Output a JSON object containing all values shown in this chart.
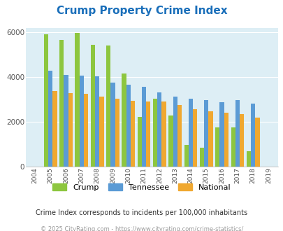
{
  "title": "Crump Property Crime Index",
  "years": [
    2004,
    2005,
    2006,
    2007,
    2008,
    2009,
    2010,
    2011,
    2012,
    2013,
    2014,
    2015,
    2016,
    2017,
    2018,
    2019
  ],
  "crump": [
    0,
    5900,
    5650,
    5980,
    5450,
    5400,
    4150,
    2220,
    3020,
    2280,
    960,
    840,
    1740,
    1740,
    680,
    0
  ],
  "tennessee": [
    0,
    4280,
    4100,
    4070,
    4040,
    3730,
    3640,
    3570,
    3310,
    3120,
    3020,
    2960,
    2860,
    2950,
    2820,
    0
  ],
  "national": [
    0,
    3380,
    3270,
    3250,
    3130,
    3030,
    2940,
    2900,
    2890,
    2730,
    2570,
    2470,
    2400,
    2340,
    2180,
    0
  ],
  "crump_color": "#8dc63f",
  "tennessee_color": "#5b9bd5",
  "national_color": "#f0a830",
  "bg_color": "#ddeef5",
  "ylim": [
    0,
    6200
  ],
  "yticks": [
    0,
    2000,
    4000,
    6000
  ],
  "subtitle": "Crime Index corresponds to incidents per 100,000 inhabitants",
  "footer": "© 2025 CityRating.com - https://www.cityrating.com/crime-statistics/",
  "title_color": "#1a6fba",
  "subtitle_color": "#333333",
  "footer_color": "#999999"
}
